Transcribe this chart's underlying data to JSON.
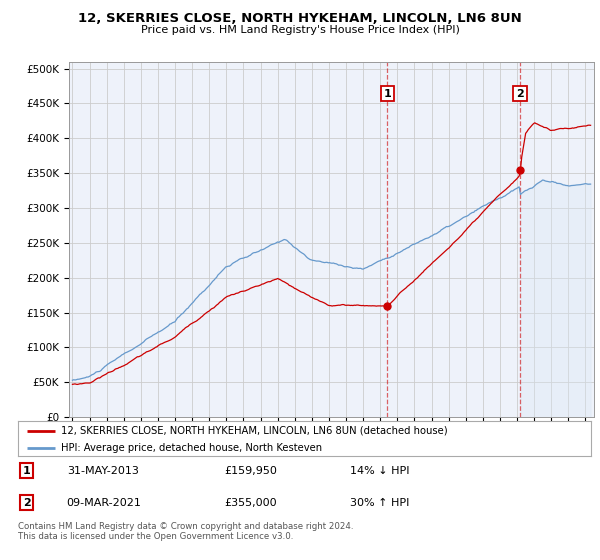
{
  "title": "12, SKERRIES CLOSE, NORTH HYKEHAM, LINCOLN, LN6 8UN",
  "subtitle": "Price paid vs. HM Land Registry's House Price Index (HPI)",
  "ylabel_ticks": [
    "£0",
    "£50K",
    "£100K",
    "£150K",
    "£200K",
    "£250K",
    "£300K",
    "£350K",
    "£400K",
    "£450K",
    "£500K"
  ],
  "ytick_vals": [
    0,
    50000,
    100000,
    150000,
    200000,
    250000,
    300000,
    350000,
    400000,
    450000,
    500000
  ],
  "ylim": [
    0,
    510000
  ],
  "xlim_start": 1994.8,
  "xlim_end": 2025.5,
  "transaction1": {
    "date": "31-MAY-2013",
    "price": 159950,
    "pct": "14%",
    "dir": "↓",
    "label": "1",
    "x": 2013.41
  },
  "transaction2": {
    "date": "09-MAR-2021",
    "price": 355000,
    "pct": "30%",
    "dir": "↑",
    "label": "2",
    "x": 2021.18
  },
  "legend_red": "12, SKERRIES CLOSE, NORTH HYKEHAM, LINCOLN, LN6 8UN (detached house)",
  "legend_blue": "HPI: Average price, detached house, North Kesteven",
  "footnote": "Contains HM Land Registry data © Crown copyright and database right 2024.\nThis data is licensed under the Open Government Licence v3.0.",
  "red_color": "#cc0000",
  "blue_color": "#6699cc",
  "blue_fill": "#dce8f5",
  "bg_color": "#ffffff",
  "plot_bg": "#eef2fa",
  "grid_color": "#cccccc",
  "vline_color": "#cc0000",
  "vline_alpha": 0.6
}
